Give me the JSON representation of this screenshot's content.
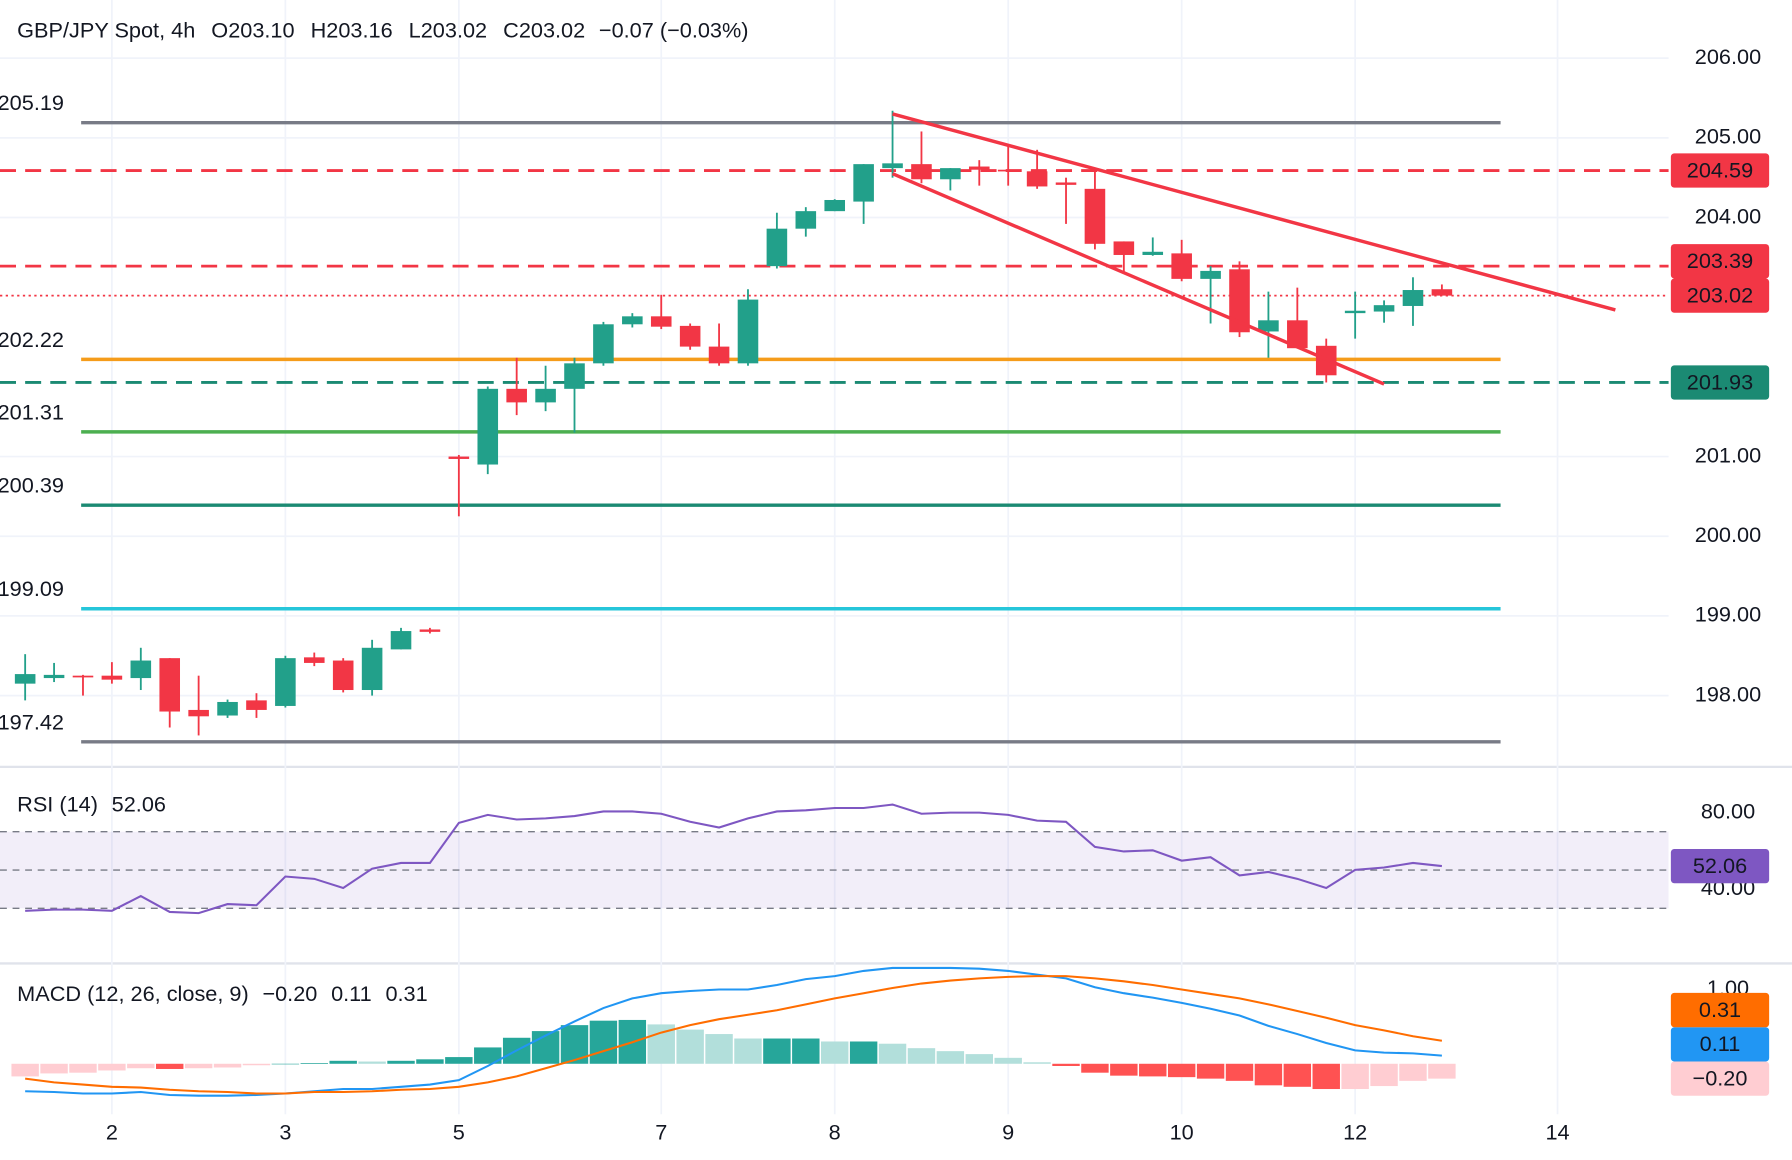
{
  "header": {
    "title": "GBP/JPY Spot, 4h",
    "fields": [
      {
        "key": "O",
        "value": "203.10"
      },
      {
        "key": "H",
        "value": "203.16"
      },
      {
        "key": "L",
        "value": "203.02"
      },
      {
        "key": "C",
        "value": "203.02"
      }
    ],
    "change": "−0.07 (−0.03%)"
  },
  "chart_data": [
    {
      "type": "candlestick",
      "xlim": [
        -0.87,
        56.84
      ],
      "xticks": [
        {
          "value": 3,
          "label": "2"
        },
        {
          "value": 9,
          "label": "3"
        },
        {
          "value": 15,
          "label": "5"
        },
        {
          "value": 22,
          "label": "7"
        },
        {
          "value": 28,
          "label": "8"
        },
        {
          "value": 34,
          "label": "9"
        },
        {
          "value": 40,
          "label": "10"
        },
        {
          "value": 46,
          "label": "12"
        },
        {
          "value": 53,
          "label": "14"
        }
      ],
      "ylim": [
        197.12,
        206.73
      ],
      "yticks": [
        {
          "value": 206,
          "label": "206.00"
        },
        {
          "value": 205,
          "label": "205.00"
        },
        {
          "value": 204,
          "label": "204.00"
        },
        {
          "value": 201,
          "label": "201.00"
        },
        {
          "value": 200,
          "label": "200.00"
        },
        {
          "value": 199,
          "label": "199.00"
        },
        {
          "value": 198,
          "label": "198.00"
        }
      ],
      "grid": true,
      "colors": {
        "up": "#22a08a",
        "down": "#f23645"
      },
      "open": [
        198.15,
        198.22,
        198.25,
        198.25,
        198.22,
        198.47,
        197.82,
        197.75,
        197.94,
        197.87,
        198.48,
        198.44,
        198.07,
        198.58,
        198.83,
        201.0,
        200.9,
        201.85,
        201.68,
        201.85,
        202.17,
        202.66,
        202.76,
        202.64,
        202.38,
        202.17,
        203.39,
        203.86,
        204.08,
        204.2,
        204.62,
        204.67,
        204.48,
        204.64,
        204.6,
        204.58,
        204.44,
        204.36,
        203.7,
        203.53,
        203.55,
        203.23,
        203.35,
        202.57,
        202.71,
        202.39,
        202.8,
        202.82,
        202.89,
        203.1
      ],
      "high": [
        198.52,
        198.41,
        198.26,
        198.42,
        198.6,
        198.47,
        198.25,
        197.95,
        198.03,
        198.5,
        198.54,
        198.47,
        198.7,
        198.85,
        198.85,
        201.02,
        201.88,
        202.24,
        202.14,
        202.24,
        202.69,
        202.8,
        203.03,
        202.67,
        202.67,
        203.1,
        204.06,
        204.13,
        204.23,
        204.67,
        205.34,
        205.08,
        204.62,
        204.72,
        204.9,
        204.85,
        204.5,
        204.6,
        203.7,
        203.75,
        203.72,
        203.39,
        203.45,
        203.07,
        203.12,
        202.48,
        203.07,
        202.96,
        203.25,
        203.16
      ],
      "low": [
        197.94,
        198.17,
        198.0,
        198.15,
        198.07,
        197.6,
        197.5,
        197.72,
        197.72,
        197.85,
        198.37,
        198.04,
        198.0,
        198.58,
        198.78,
        200.25,
        200.78,
        201.52,
        201.57,
        201.3,
        202.14,
        202.62,
        202.6,
        202.34,
        202.14,
        202.14,
        203.36,
        203.76,
        204.08,
        203.92,
        204.5,
        204.43,
        204.34,
        204.4,
        204.4,
        204.36,
        203.92,
        203.6,
        203.32,
        203.52,
        203.2,
        202.67,
        202.5,
        202.24,
        202.36,
        201.93,
        202.48,
        202.68,
        202.64,
        203.02
      ],
      "close": [
        198.27,
        198.26,
        198.24,
        198.2,
        198.44,
        197.8,
        197.74,
        197.92,
        197.82,
        198.47,
        198.41,
        198.07,
        198.6,
        198.81,
        198.8,
        200.97,
        201.85,
        201.68,
        201.85,
        202.17,
        202.66,
        202.76,
        202.63,
        202.38,
        202.17,
        202.97,
        203.86,
        204.08,
        204.22,
        204.67,
        204.68,
        204.48,
        204.62,
        204.6,
        204.58,
        204.39,
        204.41,
        203.67,
        203.53,
        203.57,
        203.23,
        203.33,
        202.56,
        202.71,
        202.36,
        202.02,
        202.83,
        202.9,
        203.09,
        203.02
      ],
      "levels": [
        {
          "value": 205.19,
          "color": "#787b86"
        },
        {
          "value": 202.22,
          "color": "#f59c1a"
        },
        {
          "value": 201.31,
          "color": "#4caf50"
        },
        {
          "value": 200.39,
          "color": "#1b8a73"
        },
        {
          "value": 199.09,
          "color": "#26c6da"
        },
        {
          "value": 197.42,
          "color": "#787b86"
        }
      ],
      "price_lines": [
        {
          "value": 204.59,
          "color": "#f23645",
          "style": "dashed"
        },
        {
          "value": 203.39,
          "color": "#f23645",
          "style": "dashed"
        },
        {
          "value": 203.02,
          "color": "#f23645",
          "style": "dotted"
        },
        {
          "value": 201.93,
          "color": "#1b8a73",
          "style": "dashed"
        }
      ],
      "trendlines": [
        {
          "x": [
            30,
            55
          ],
          "y": [
            205.3,
            202.84
          ],
          "color": "#f23645"
        },
        {
          "x": [
            30,
            47
          ],
          "y": [
            204.55,
            201.91
          ],
          "color": "#f23645"
        }
      ]
    },
    {
      "type": "rsi",
      "title": "RSI (14)",
      "color": "#7e57c2",
      "ylim": [
        1.8,
        103.3
      ],
      "yticks": [
        {
          "value": 80,
          "label": "80.00"
        },
        {
          "value": 40,
          "label": "40.00"
        }
      ],
      "bands": [
        70,
        50,
        30
      ],
      "values": [
        28.7,
        29.3,
        29.3,
        28.7,
        36.4,
        28.1,
        27.5,
        32.2,
        31.6,
        46.6,
        45.4,
        40.6,
        50.7,
        53.7,
        53.7,
        74.6,
        78.8,
        76.4,
        77.0,
        78.2,
        80.6,
        80.6,
        79.4,
        75.2,
        72.2,
        77.0,
        80.6,
        81.2,
        82.4,
        82.4,
        84.2,
        79.4,
        80.0,
        80.0,
        78.8,
        75.8,
        75.2,
        62.1,
        59.7,
        60.3,
        54.9,
        56.7,
        47.2,
        49.0,
        45.4,
        40.6,
        50.1,
        51.3,
        53.7,
        52.06
      ]
    },
    {
      "type": "macd",
      "title": "MACD (12, 26, close, 9)",
      "ylim": [
        -0.68,
        1.32
      ],
      "yticks": [
        {
          "value": 1,
          "label": "1.00"
        }
      ],
      "histogram": {
        "colors": [
          "#26a69a",
          "#b2dfdb",
          "#ff5252",
          "#ffcdd2"
        ],
        "values": [
          -0.17,
          -0.13,
          -0.12,
          -0.09,
          -0.06,
          -0.07,
          -0.06,
          -0.05,
          -0.02,
          0.0,
          0.01,
          0.04,
          0.03,
          0.04,
          0.06,
          0.09,
          0.22,
          0.35,
          0.44,
          0.52,
          0.58,
          0.59,
          0.53,
          0.46,
          0.4,
          0.34,
          0.34,
          0.34,
          0.3,
          0.3,
          0.27,
          0.21,
          0.17,
          0.13,
          0.08,
          0.02,
          -0.03,
          -0.12,
          -0.16,
          -0.17,
          -0.18,
          -0.2,
          -0.23,
          -0.29,
          -0.31,
          -0.34,
          -0.34,
          -0.3,
          -0.23,
          -0.2
        ],
        "value_labels": [
          null,
          null,
          null,
          null,
          null,
          null,
          null,
          null,
          null,
          null,
          null,
          null,
          null,
          null,
          null,
          null,
          null,
          null,
          null,
          null,
          null,
          null,
          null,
          null,
          null,
          null,
          null,
          null,
          null,
          null,
          null,
          null,
          null,
          null,
          null,
          null,
          null,
          null,
          null,
          null,
          null,
          null,
          null,
          null,
          null,
          null,
          null,
          null,
          null,
          "−0.20"
        ]
      },
      "series": [
        {
          "color": "#2196f3",
          "values": [
            -0.37,
            -0.38,
            -0.4,
            -0.4,
            -0.38,
            -0.42,
            -0.43,
            -0.43,
            -0.42,
            -0.4,
            -0.37,
            -0.34,
            -0.34,
            -0.31,
            -0.28,
            -0.22,
            -0.03,
            0.18,
            0.38,
            0.57,
            0.75,
            0.88,
            0.95,
            0.98,
            1.0,
            1.0,
            1.06,
            1.14,
            1.18,
            1.25,
            1.29,
            1.29,
            1.29,
            1.28,
            1.25,
            1.2,
            1.15,
            1.03,
            0.95,
            0.89,
            0.82,
            0.74,
            0.65,
            0.51,
            0.4,
            0.28,
            0.18,
            0.15,
            0.14,
            0.11
          ]
        },
        {
          "color": "#ff6d00",
          "values": [
            -0.2,
            -0.25,
            -0.28,
            -0.31,
            -0.32,
            -0.35,
            -0.37,
            -0.38,
            -0.4,
            -0.4,
            -0.38,
            -0.38,
            -0.37,
            -0.35,
            -0.34,
            -0.31,
            -0.25,
            -0.17,
            -0.06,
            0.05,
            0.17,
            0.29,
            0.42,
            0.52,
            0.6,
            0.66,
            0.72,
            0.8,
            0.88,
            0.95,
            1.02,
            1.08,
            1.12,
            1.15,
            1.17,
            1.18,
            1.18,
            1.15,
            1.11,
            1.06,
            1.0,
            0.94,
            0.88,
            0.8,
            0.71,
            0.62,
            0.52,
            0.45,
            0.37,
            0.31
          ]
        }
      ]
    }
  ]
}
